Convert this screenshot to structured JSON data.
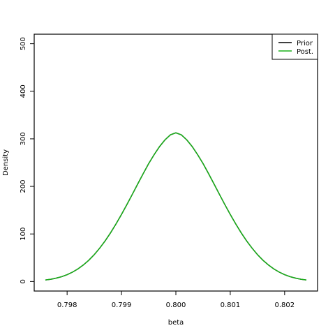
{
  "chart_data": {
    "type": "line",
    "title": "",
    "xlabel": "beta",
    "ylabel": "Density",
    "xlim": [
      0.7976,
      0.8024
    ],
    "ylim": [
      0,
      500
    ],
    "xticks": [
      0.798,
      0.799,
      0.8,
      0.801,
      0.802
    ],
    "xtick_labels": [
      "0.798",
      "0.799",
      "0.800",
      "0.801",
      "0.802"
    ],
    "yticks": [
      0,
      100,
      200,
      300,
      400,
      500
    ],
    "ytick_labels": [
      "0",
      "100",
      "200",
      "300",
      "400",
      "500"
    ],
    "grid": false,
    "legend": "top-right",
    "series": [
      {
        "name": "Prior",
        "color": "#000000",
        "x": [
          0.7976,
          0.7977,
          0.7978,
          0.7979,
          0.798,
          0.7981,
          0.7982,
          0.7983,
          0.7984,
          0.7985,
          0.7986,
          0.7987,
          0.7988,
          0.7989,
          0.799,
          0.7991,
          0.7992,
          0.7993,
          0.7994,
          0.7995,
          0.7996,
          0.7997,
          0.7998,
          0.7999,
          0.8,
          0.8001,
          0.8002,
          0.8003,
          0.8004,
          0.8005,
          0.8006,
          0.8007,
          0.8008,
          0.8009,
          0.801,
          0.8011,
          0.8012,
          0.8013,
          0.8014,
          0.8015,
          0.8016,
          0.8017,
          0.8018,
          0.8019,
          0.802,
          0.8021,
          0.8022,
          0.8023,
          0.8024
        ],
        "values": [
          3.2,
          4.8,
          7.1,
          10.2,
          14.4,
          19.8,
          26.6,
          35.0,
          44.9,
          56.7,
          70.3,
          85.6,
          102.6,
          121.2,
          141.0,
          161.9,
          183.5,
          205.4,
          227.0,
          248.0,
          266.7,
          283.8,
          297.9,
          308.4,
          312.6,
          308.4,
          297.9,
          283.8,
          266.7,
          248.0,
          227.0,
          205.4,
          183.5,
          161.9,
          141.0,
          121.2,
          102.6,
          85.6,
          70.3,
          56.7,
          44.9,
          35.0,
          26.6,
          19.8,
          14.4,
          10.2,
          7.1,
          4.8,
          3.2
        ]
      },
      {
        "name": "Post.",
        "color": "#1ab01a",
        "x": [
          0.7976,
          0.7977,
          0.7978,
          0.7979,
          0.798,
          0.7981,
          0.7982,
          0.7983,
          0.7984,
          0.7985,
          0.7986,
          0.7987,
          0.7988,
          0.7989,
          0.799,
          0.7991,
          0.7992,
          0.7993,
          0.7994,
          0.7995,
          0.7996,
          0.7997,
          0.7998,
          0.7999,
          0.8,
          0.8001,
          0.8002,
          0.8003,
          0.8004,
          0.8005,
          0.8006,
          0.8007,
          0.8008,
          0.8009,
          0.801,
          0.8011,
          0.8012,
          0.8013,
          0.8014,
          0.8015,
          0.8016,
          0.8017,
          0.8018,
          0.8019,
          0.802,
          0.8021,
          0.8022,
          0.8023,
          0.8024
        ],
        "values": [
          3.2,
          4.8,
          7.1,
          10.2,
          14.4,
          19.8,
          26.6,
          35.0,
          44.9,
          56.7,
          70.3,
          85.6,
          102.6,
          121.2,
          141.0,
          161.9,
          183.5,
          205.4,
          227.0,
          248.0,
          266.7,
          283.8,
          297.9,
          308.4,
          312.6,
          308.4,
          297.9,
          283.8,
          266.7,
          248.0,
          227.0,
          205.4,
          183.5,
          161.9,
          141.0,
          121.2,
          102.6,
          85.6,
          70.3,
          56.7,
          44.9,
          35.0,
          26.6,
          19.8,
          14.4,
          10.2,
          7.1,
          4.8,
          3.2
        ]
      }
    ]
  }
}
